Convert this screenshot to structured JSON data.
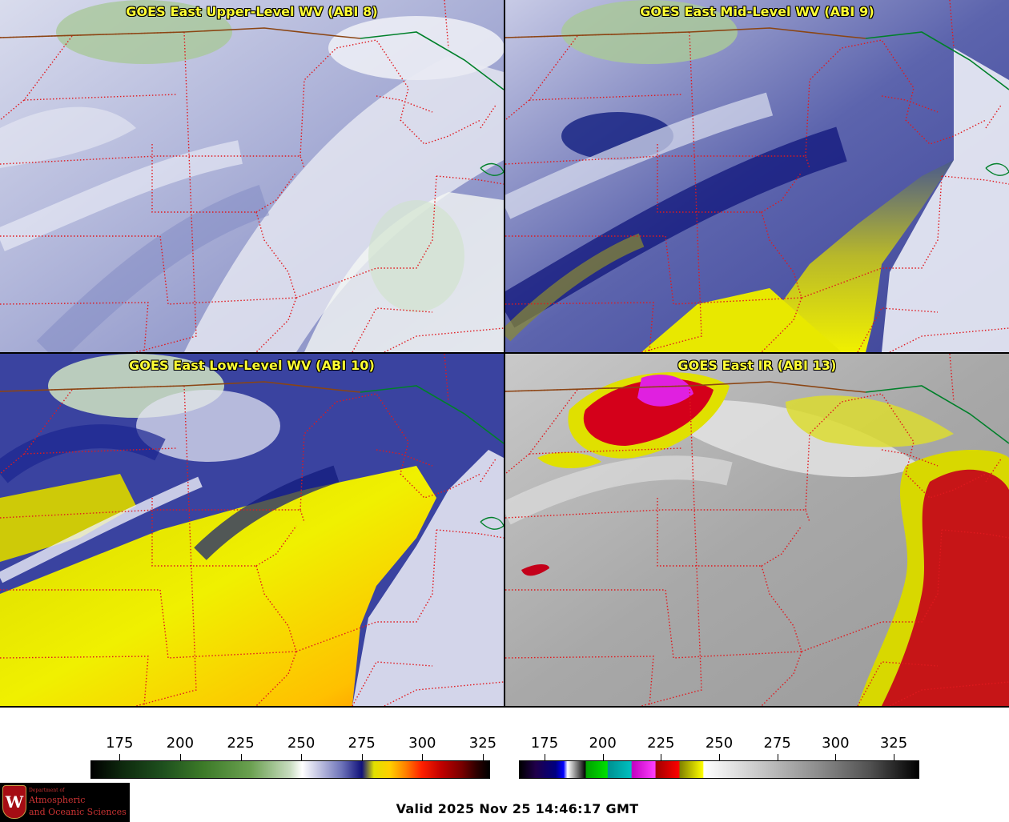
{
  "panels": [
    {
      "title": "GOES East Upper-Level WV (ABI 8)",
      "scheme": "wv-upper"
    },
    {
      "title": "GOES East Mid-Level WV (ABI 9)",
      "scheme": "wv-mid"
    },
    {
      "title": "GOES East Low-Level WV (ABI 10)",
      "scheme": "wv-low"
    },
    {
      "title": "GOES East IR (ABI 13)",
      "scheme": "ir"
    }
  ],
  "colorbar_wv": {
    "ticks": [
      "175",
      "200",
      "225",
      "250",
      "275",
      "300",
      "325"
    ],
    "range": [
      163,
      328
    ]
  },
  "colorbar_ir": {
    "ticks": [
      "175",
      "200",
      "225",
      "250",
      "275",
      "300",
      "325"
    ],
    "range": [
      164,
      336
    ]
  },
  "valid_time": "Valid 2025 Nov 25 14:46:17 GMT",
  "logo": {
    "seal_letter": "W",
    "dept": "Department of",
    "line1": "Atmospheric",
    "line2": "and Oceanic Sciences"
  },
  "colors": {
    "state_border": "#e0191e",
    "canada_border": "#8b4513",
    "lake_border": "#00802a",
    "title": "#ffff33"
  }
}
